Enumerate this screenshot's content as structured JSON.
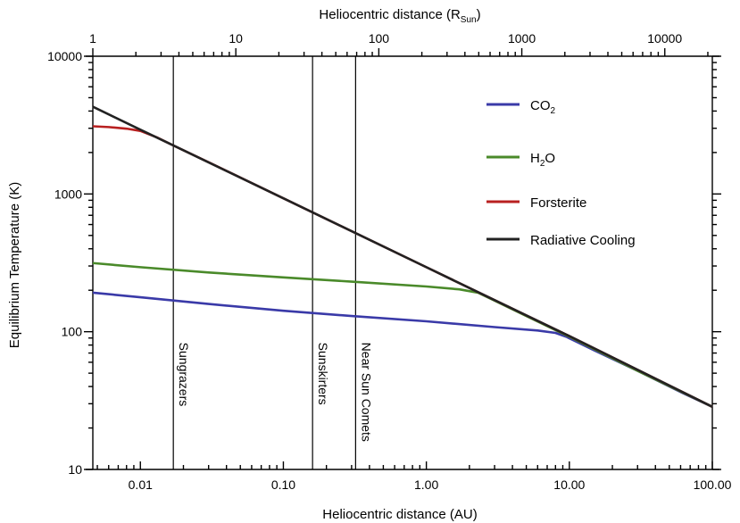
{
  "chart_data": {
    "type": "line",
    "x_scale": "log",
    "y_scale": "log",
    "xlabel": "Heliocentric distance (AU)",
    "ylabel": "Equilibrium Temperature (K)",
    "top_axis": {
      "label_prefix": "Heliocentric distance (R",
      "label_sub": "Sun",
      "label_suffix": ")",
      "ticks": [
        1,
        10,
        100,
        1000,
        10000
      ],
      "tick_labels": [
        "1",
        "10",
        "100",
        "1000",
        "10000"
      ],
      "xlim_rsun": [
        1,
        21500
      ]
    },
    "xlim": [
      0.00465,
      100
    ],
    "ylim": [
      10,
      10000
    ],
    "x_ticks": [
      0.01,
      0.1,
      1,
      10,
      100
    ],
    "x_tick_labels": [
      "0.01",
      "0.10",
      "1.00",
      "10.00",
      "100.00"
    ],
    "y_ticks": [
      10,
      100,
      1000,
      10000
    ],
    "y_tick_labels": [
      "10",
      "100",
      "1000",
      "10000"
    ],
    "grid": false,
    "legend_position": "top-right",
    "series": [
      {
        "name": "CO2",
        "name_base": "CO",
        "name_sub": "2",
        "color": "#3a3aa8",
        "x": [
          0.00465,
          0.01,
          0.03,
          0.1,
          0.3,
          1,
          3,
          6,
          8,
          9.5,
          15,
          30,
          60,
          100
        ],
        "y": [
          192,
          178,
          159,
          142,
          130,
          119,
          108,
          102,
          98,
          92,
          73,
          52,
          36.5,
          28.5
        ]
      },
      {
        "name": "H2O",
        "name_base": "H",
        "name_sub": "2",
        "name_suffix": "O",
        "color": "#4a8a2a",
        "x": [
          0.00465,
          0.01,
          0.03,
          0.1,
          0.3,
          1,
          1.7,
          2.3,
          3,
          5,
          10,
          30,
          100
        ],
        "y": [
          315,
          294,
          269,
          248,
          231,
          213,
          203,
          192,
          168,
          130,
          92,
          52,
          28.5
        ]
      },
      {
        "name": "Forsterite",
        "color": "#b82020",
        "x": [
          0.00465,
          0.006,
          0.008,
          0.01,
          0.013,
          0.017,
          0.03,
          0.1,
          0.3,
          1,
          10,
          100
        ],
        "y": [
          3100,
          3060,
          2980,
          2870,
          2580,
          2250,
          1700,
          930,
          537,
          294,
          93,
          28.5
        ]
      },
      {
        "name": "Radiative Cooling",
        "color": "#222222",
        "x": [
          0.00465,
          0.01,
          0.017,
          0.1,
          0.16,
          0.32,
          1,
          10,
          100
        ],
        "y": [
          4300,
          2930,
          2250,
          930,
          735,
          520,
          294,
          93,
          28.5
        ]
      }
    ],
    "vertical_lines": [
      {
        "x": 0.017,
        "label": "Sungrazers"
      },
      {
        "x": 0.16,
        "label": "Sunskirters"
      },
      {
        "x": 0.32,
        "label": "Near Sun Comets"
      }
    ]
  }
}
